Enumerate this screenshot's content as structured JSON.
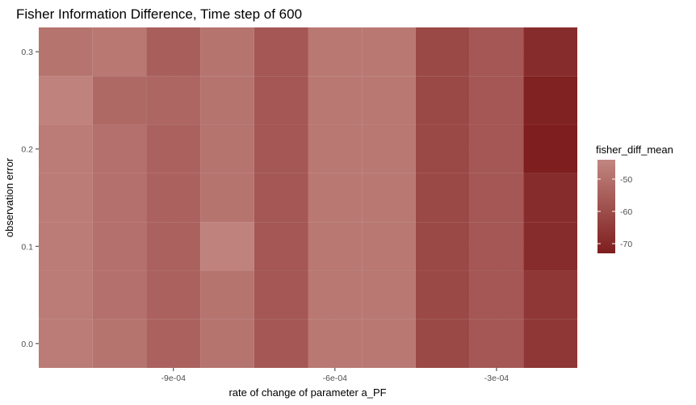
{
  "chart_data": {
    "type": "heatmap",
    "title": "Fisher Information Difference, Time step of 600",
    "xlabel": "rate of change of parameter a_PF",
    "ylabel": "observation error",
    "x_values": [
      -0.0011,
      -0.001,
      -0.0009,
      -0.0008,
      -0.0007,
      -0.0006,
      -0.0005,
      -0.0004,
      -0.0003,
      -0.0002
    ],
    "y_values": [
      0.0,
      0.05,
      0.1,
      0.15,
      0.2,
      0.25,
      0.3
    ],
    "x_ticks": [
      {
        "value": -0.0009,
        "label": "-9e-04"
      },
      {
        "value": -0.0006,
        "label": "-6e-04"
      },
      {
        "value": -0.0003,
        "label": "-3e-04"
      }
    ],
    "y_ticks": [
      {
        "value": 0.0,
        "label": "0.0"
      },
      {
        "value": 0.1,
        "label": "0.1"
      },
      {
        "value": 0.2,
        "label": "0.2"
      },
      {
        "value": 0.3,
        "label": "0.3"
      }
    ],
    "xlim": [
      -0.00115,
      -0.00015
    ],
    "ylim": [
      -0.025,
      0.325
    ],
    "z": [
      [
        -47,
        -49,
        -54,
        -49,
        -57,
        -48,
        -48,
        -61,
        -57,
        -66
      ],
      [
        -47,
        -50,
        -54,
        -49,
        -57,
        -48,
        -48,
        -61,
        -57,
        -66
      ],
      [
        -47,
        -50,
        -54,
        -45,
        -57,
        -48,
        -48,
        -61,
        -57,
        -69
      ],
      [
        -47,
        -50,
        -54,
        -49,
        -57,
        -48,
        -48,
        -61,
        -57,
        -69
      ],
      [
        -47,
        -50,
        -54,
        -49,
        -57,
        -48,
        -48,
        -61,
        -57,
        -73
      ],
      [
        -45,
        -52,
        -53,
        -49,
        -57,
        -48,
        -48,
        -61,
        -57,
        -72
      ],
      [
        -49,
        -48,
        -55,
        -49,
        -57,
        -48,
        -48,
        -61,
        -57,
        -69
      ]
    ],
    "legend": {
      "title": "fisher_diff_mean",
      "position": "right",
      "min": -73,
      "max": -44,
      "ticks": [
        {
          "value": -50,
          "label": "-50"
        },
        {
          "value": -60,
          "label": "-60"
        },
        {
          "value": -70,
          "label": "-70"
        }
      ],
      "color_low": "#7e1e1e",
      "color_high": "#c28680"
    },
    "panel_background": "#ebebeb",
    "grid": true
  }
}
